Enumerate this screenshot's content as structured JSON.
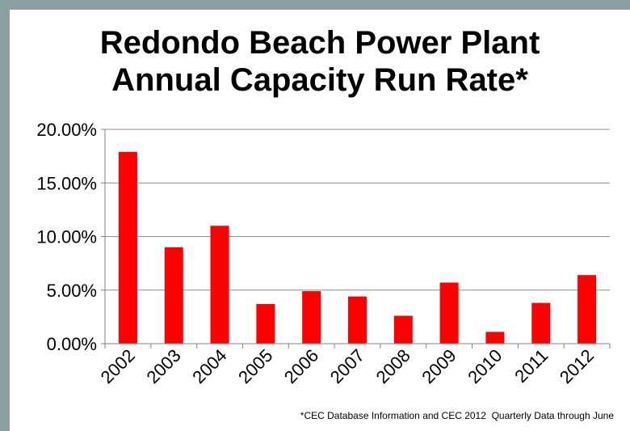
{
  "chart_data": {
    "type": "bar",
    "title_line1": "Redondo Beach Power Plant",
    "title_line2": "Annual Capacity Run Rate*",
    "categories": [
      "2002",
      "2003",
      "2004",
      "2005",
      "2006",
      "2007",
      "2008",
      "2009",
      "2010",
      "2011",
      "2012"
    ],
    "values": [
      17.9,
      9.0,
      11.0,
      3.7,
      4.9,
      4.4,
      2.6,
      5.7,
      1.1,
      3.8,
      6.4
    ],
    "ylim": [
      0,
      20
    ],
    "yticks": [
      "0.00%",
      "5.00%",
      "10.00%",
      "15.00%",
      "20.00%"
    ],
    "grid": true,
    "bar_color": "#ff0000",
    "footnote": "*CEC Database Information and CEC 2012  Quarterly Data through June"
  }
}
